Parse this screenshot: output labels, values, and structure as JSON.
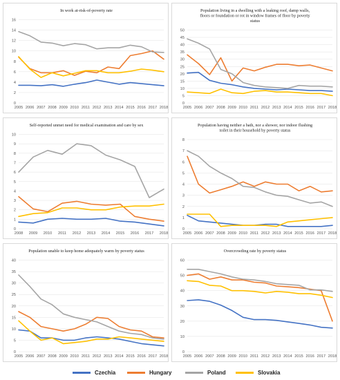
{
  "colors": {
    "Czechia": "#4472C4",
    "Hungary": "#ED7D31",
    "Poland": "#A5A5A5",
    "Slovakia": "#FFC000"
  },
  "legend": [
    "Czechia",
    "Hungary",
    "Poland",
    "Slovakia"
  ],
  "chart_data": [
    {
      "type": "line",
      "title": [
        "In work at-risk-of-poverty rate"
      ],
      "categories": [
        "2005",
        "2006",
        "2007",
        "2008",
        "2009",
        "2010",
        "2011",
        "2012",
        "2013",
        "2014",
        "2015",
        "2016",
        "2017",
        "2018"
      ],
      "yticks": [
        0,
        2,
        4,
        6,
        8,
        10,
        12,
        14,
        16
      ],
      "ylim": [
        0,
        16
      ],
      "series": [
        {
          "name": "Czechia",
          "values": [
            3.4,
            3.4,
            3.3,
            3.5,
            3.2,
            3.6,
            3.9,
            4.4,
            4.0,
            3.6,
            3.9,
            3.7,
            3.5,
            3.3
          ]
        },
        {
          "name": "Hungary",
          "values": [
            8.8,
            6.6,
            5.8,
            5.8,
            6.2,
            5.3,
            6.1,
            5.8,
            6.9,
            6.6,
            9.1,
            9.5,
            10.0,
            8.4
          ]
        },
        {
          "name": "Poland",
          "values": [
            13.7,
            12.9,
            11.7,
            11.5,
            11.0,
            11.4,
            11.2,
            10.4,
            10.6,
            10.6,
            11.1,
            10.8,
            9.8,
            9.7
          ]
        },
        {
          "name": "Slovakia",
          "values": [
            8.9,
            6.5,
            4.9,
            5.8,
            5.2,
            5.7,
            6.2,
            6.2,
            5.8,
            5.8,
            6.1,
            6.5,
            6.3,
            6.0
          ]
        }
      ]
    },
    {
      "type": "line",
      "title": [
        "Population living in a dwelling with a leaking roof, damp walls,",
        "floors or foundation or rot in window frames of floor by poverty",
        "status"
      ],
      "categories": [
        "2005",
        "2006",
        "2007",
        "2008",
        "2009",
        "2010",
        "2011",
        "2012",
        "2013",
        "2014",
        "2015",
        "2016",
        "2017",
        "2018"
      ],
      "yticks": [
        0,
        5,
        10,
        15,
        20,
        25,
        30,
        35,
        40,
        45,
        50
      ],
      "ylim": [
        0,
        50
      ],
      "series": [
        {
          "name": "Czechia",
          "values": [
            20.5,
            21,
            15.5,
            13.5,
            12.5,
            11,
            10,
            9.5,
            9,
            9.5,
            9,
            8.5,
            8.5,
            8
          ]
        },
        {
          "name": "Hungary",
          "values": [
            33,
            27,
            19.5,
            31,
            15,
            24,
            22,
            24.5,
            26.5,
            26.5,
            25.5,
            26,
            24,
            22
          ]
        },
        {
          "name": "Poland",
          "values": [
            44,
            41,
            37,
            23,
            20,
            14,
            12,
            11,
            10.5,
            10,
            12,
            11.5,
            11.5,
            11
          ]
        },
        {
          "name": "Slovakia",
          "values": [
            7.5,
            7,
            6.5,
            9.5,
            7,
            6.5,
            8,
            8.5,
            7.5,
            7.5,
            7,
            6.5,
            6.5,
            5
          ]
        }
      ]
    },
    {
      "type": "line",
      "title": [
        "Self-reported unmet need for medical examination and care by sex"
      ],
      "categories": [
        "2008",
        "2009",
        "2010",
        "2011",
        "2012",
        "2013",
        "2014",
        "2015",
        "2016",
        "2017",
        "2018"
      ],
      "yticks": [
        0,
        1,
        2,
        3,
        4,
        5,
        6,
        7,
        8,
        9,
        10
      ],
      "ylim": [
        0,
        10
      ],
      "series": [
        {
          "name": "Czechia",
          "values": [
            0.7,
            0.6,
            1.0,
            1.1,
            1.0,
            1.0,
            1.1,
            0.8,
            0.7,
            0.5,
            0.3
          ]
        },
        {
          "name": "Hungary",
          "values": [
            3.4,
            2.1,
            1.8,
            2.7,
            2.9,
            2.6,
            2.5,
            2.6,
            1.3,
            1.0,
            0.8
          ]
        },
        {
          "name": "Poland",
          "values": [
            6.0,
            7.6,
            8.3,
            7.9,
            9.0,
            8.8,
            7.8,
            7.3,
            6.6,
            3.3,
            4.2
          ]
        },
        {
          "name": "Slovakia",
          "values": [
            1.3,
            1.6,
            1.7,
            2.2,
            2.2,
            2.0,
            2.0,
            2.3,
            2.4,
            2.4,
            2.6
          ]
        }
      ]
    },
    {
      "type": "line",
      "title": [
        "Population having neither a bath, nor a shower, nor indoor flushing",
        "toilet in their household by poverty status"
      ],
      "categories": [
        "2005",
        "2006",
        "2007",
        "2008",
        "2009",
        "2010",
        "2011",
        "2012",
        "2013",
        "2014",
        "2015",
        "2016",
        "2017",
        "2018"
      ],
      "yticks": [
        0,
        1,
        2,
        3,
        4,
        5,
        6,
        7,
        8
      ],
      "ylim": [
        0,
        8
      ],
      "series": [
        {
          "name": "Czechia",
          "values": [
            1.2,
            0.7,
            0.6,
            0.5,
            0.4,
            0.3,
            0.3,
            0.4,
            0.4,
            0.2,
            0.2,
            0.2,
            0.2,
            0.3
          ]
        },
        {
          "name": "Hungary",
          "values": [
            6.5,
            4.0,
            3.2,
            3.5,
            3.8,
            4.2,
            3.8,
            4.2,
            4.0,
            4.0,
            3.4,
            3.8,
            3.3,
            3.4
          ]
        },
        {
          "name": "Poland",
          "values": [
            7.0,
            6.5,
            5.6,
            5.0,
            4.5,
            3.8,
            3.7,
            3.3,
            3.0,
            2.9,
            2.6,
            2.3,
            2.4,
            2.0
          ]
        },
        {
          "name": "Slovakia",
          "values": [
            1.3,
            1.3,
            1.3,
            0.2,
            0.3,
            0.3,
            0.3,
            0.3,
            0.2,
            0.6,
            0.7,
            0.8,
            0.9,
            1.0
          ]
        }
      ]
    },
    {
      "type": "line",
      "title": [
        "Population unable to keep home adequately warm by poverty status"
      ],
      "categories": [
        "2005",
        "2006",
        "2007",
        "2008",
        "2009",
        "2010",
        "2011",
        "2012",
        "2013",
        "2014",
        "2015",
        "2016",
        "2017",
        "2018"
      ],
      "yticks": [
        0,
        5,
        10,
        15,
        20,
        25,
        30,
        35,
        40
      ],
      "ylim": [
        0,
        40
      ],
      "series": [
        {
          "name": "Czechia",
          "values": [
            9.5,
            9,
            6,
            6,
            5,
            5,
            6,
            6.5,
            6,
            5.5,
            4.5,
            3.5,
            3,
            2.5
          ]
        },
        {
          "name": "Hungary",
          "values": [
            17.5,
            15,
            11,
            10,
            9,
            10,
            12,
            15,
            14.5,
            11,
            9.5,
            9,
            6.5,
            6
          ]
        },
        {
          "name": "Poland",
          "values": [
            33.5,
            28.5,
            23,
            20.5,
            16.5,
            15,
            14,
            13,
            11,
            9,
            8,
            7.5,
            6,
            5.5
          ]
        },
        {
          "name": "Slovakia",
          "values": [
            13.5,
            9,
            5,
            6,
            3.5,
            4,
            4.5,
            5.5,
            5.5,
            6.5,
            6,
            5.5,
            5,
            4.5
          ]
        }
      ]
    },
    {
      "type": "line",
      "title": [
        "Overcrowding rate by poverty status"
      ],
      "categories": [
        "2005",
        "2006",
        "2007",
        "2008",
        "2009",
        "2010",
        "2011",
        "2012",
        "2013",
        "2014",
        "2015",
        "2016",
        "2017",
        "2018"
      ],
      "yticks": [
        0,
        10,
        20,
        30,
        40,
        50,
        60
      ],
      "ylim": [
        0,
        60
      ],
      "series": [
        {
          "name": "Czechia",
          "values": [
            33.5,
            34,
            33,
            30.5,
            27,
            22.5,
            21,
            21,
            20.5,
            19.5,
            18.5,
            17.5,
            16,
            15.5
          ]
        },
        {
          "name": "Hungary",
          "values": [
            50,
            51,
            47.5,
            49,
            47,
            47,
            45.5,
            45,
            43,
            42.5,
            42,
            41,
            40,
            20
          ]
        },
        {
          "name": "Poland",
          "values": [
            54,
            54,
            52.5,
            51,
            49,
            47.5,
            47,
            46,
            44.5,
            44,
            43.5,
            40.5,
            40.5,
            39.5
          ]
        },
        {
          "name": "Slovakia",
          "values": [
            46.5,
            46,
            43.5,
            43,
            40,
            40,
            39.5,
            38.5,
            39.5,
            39,
            38,
            38,
            37,
            35.5
          ]
        }
      ]
    }
  ]
}
